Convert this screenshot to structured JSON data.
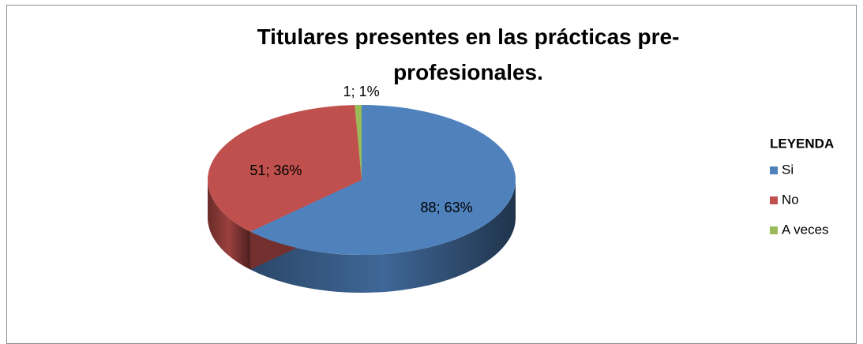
{
  "chart_data": {
    "type": "pie3d",
    "title": "Titulares presentes en las prácticas pre-profesionales.",
    "legend_title": "LEYENDA",
    "legend": "right",
    "categories": [
      "Si",
      "No",
      "A veces"
    ],
    "values": [
      88,
      51,
      1
    ],
    "value_labels": [
      "88; 63%",
      "51; 36%",
      "1; 1%"
    ],
    "colors": [
      "#4f81bd",
      "#c0504d",
      "#9bbb59"
    ]
  }
}
